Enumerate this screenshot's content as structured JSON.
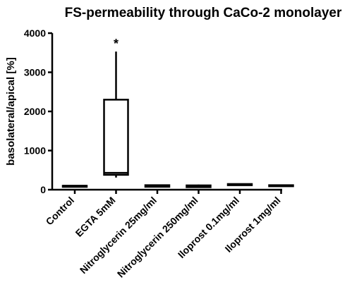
{
  "chart_data": {
    "type": "box",
    "title": "FS-permeability through CaCo-2 monolayer",
    "xlabel": "",
    "ylabel": "basolateral/apical [%]",
    "ylim": [
      0,
      4000
    ],
    "yticks": [
      0,
      1000,
      2000,
      3000,
      4000
    ],
    "ytick_labels": [
      "0",
      "1000",
      "2000",
      "3000",
      "4000"
    ],
    "grid": false,
    "categories": [
      "Control",
      "EGTA 5mM",
      "Nitroglycerin 25mg/ml",
      "Nitroglycerin 250mg/ml",
      "Iloprost 0.1mg/ml",
      "Iloprost  1mg/ml"
    ],
    "boxes": [
      {
        "category": "Control",
        "min": 100,
        "q1": 100,
        "median": 100,
        "q3": 100,
        "max": 100,
        "annotation": ""
      },
      {
        "category": "EGTA 5mM",
        "min": 310,
        "q1": 380,
        "median": 430,
        "q3": 2300,
        "max": 3530,
        "annotation": "*"
      },
      {
        "category": "Nitroglycerin 25mg/ml",
        "min": 60,
        "q1": 75,
        "median": 95,
        "q3": 115,
        "max": 130,
        "annotation": ""
      },
      {
        "category": "Nitroglycerin 250mg/ml",
        "min": 50,
        "q1": 65,
        "median": 85,
        "q3": 110,
        "max": 130,
        "annotation": ""
      },
      {
        "category": "Iloprost 0.1mg/ml",
        "min": 100,
        "q1": 115,
        "median": 130,
        "q3": 145,
        "max": 160,
        "annotation": ""
      },
      {
        "category": "Iloprost  1mg/ml",
        "min": 85,
        "q1": 95,
        "median": 105,
        "q3": 115,
        "max": 125,
        "annotation": ""
      }
    ]
  }
}
